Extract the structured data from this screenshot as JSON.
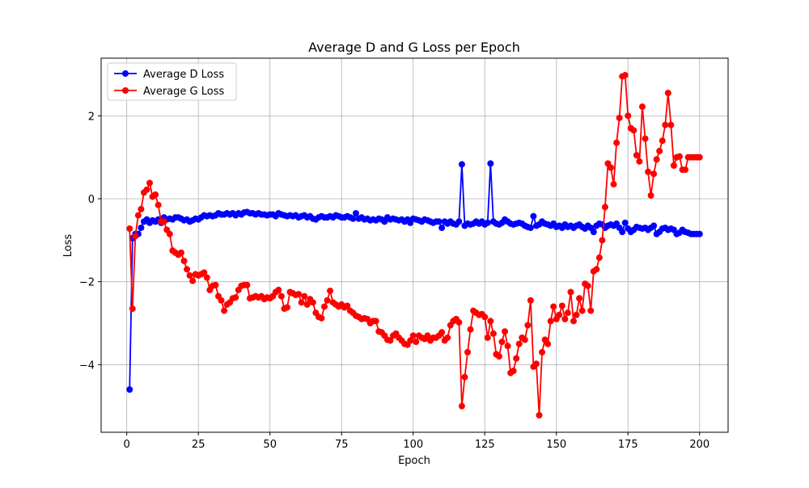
{
  "chart_data": {
    "type": "line",
    "title": "Average D and G Loss per Epoch",
    "xlabel": "Epoch",
    "ylabel": "Loss",
    "x": [
      1,
      2,
      3,
      4,
      5,
      6,
      7,
      8,
      9,
      10,
      11,
      12,
      13,
      14,
      15,
      16,
      17,
      18,
      19,
      20,
      21,
      22,
      23,
      24,
      25,
      26,
      27,
      28,
      29,
      30,
      31,
      32,
      33,
      34,
      35,
      36,
      37,
      38,
      39,
      40,
      41,
      42,
      43,
      44,
      45,
      46,
      47,
      48,
      49,
      50,
      51,
      52,
      53,
      54,
      55,
      56,
      57,
      58,
      59,
      60,
      61,
      62,
      63,
      64,
      65,
      66,
      67,
      68,
      69,
      70,
      71,
      72,
      73,
      74,
      75,
      76,
      77,
      78,
      79,
      80,
      81,
      82,
      83,
      84,
      85,
      86,
      87,
      88,
      89,
      90,
      91,
      92,
      93,
      94,
      95,
      96,
      97,
      98,
      99,
      100,
      101,
      102,
      103,
      104,
      105,
      106,
      107,
      108,
      109,
      110,
      111,
      112,
      113,
      114,
      115,
      116,
      117,
      118,
      119,
      120,
      121,
      122,
      123,
      124,
      125,
      126,
      127,
      128,
      129,
      130,
      131,
      132,
      133,
      134,
      135,
      136,
      137,
      138,
      139,
      140,
      141,
      142,
      143,
      144,
      145,
      146,
      147,
      148,
      149,
      150,
      151,
      152,
      153,
      154,
      155,
      156,
      157,
      158,
      159,
      160,
      161,
      162,
      163,
      164,
      165,
      166,
      167,
      168,
      169,
      170,
      171,
      172,
      173,
      174,
      175,
      176,
      177,
      178,
      179,
      180,
      181,
      182,
      183,
      184,
      185,
      186,
      187,
      188,
      189,
      190,
      191,
      192,
      193,
      194,
      195,
      196,
      197,
      198,
      199,
      200
    ],
    "series": [
      {
        "name": "Average D Loss",
        "color": "#0000ff",
        "values": [
          -4.6,
          -0.95,
          -0.85,
          -0.85,
          -0.7,
          -0.55,
          -0.5,
          -0.58,
          -0.52,
          -0.55,
          -0.5,
          -0.58,
          -0.45,
          -0.5,
          -0.48,
          -0.5,
          -0.45,
          -0.45,
          -0.48,
          -0.52,
          -0.5,
          -0.55,
          -0.52,
          -0.48,
          -0.5,
          -0.45,
          -0.4,
          -0.42,
          -0.4,
          -0.42,
          -0.4,
          -0.35,
          -0.38,
          -0.38,
          -0.35,
          -0.38,
          -0.35,
          -0.4,
          -0.35,
          -0.38,
          -0.33,
          -0.32,
          -0.35,
          -0.35,
          -0.38,
          -0.35,
          -0.38,
          -0.38,
          -0.4,
          -0.38,
          -0.38,
          -0.42,
          -0.35,
          -0.38,
          -0.4,
          -0.42,
          -0.4,
          -0.42,
          -0.4,
          -0.45,
          -0.42,
          -0.4,
          -0.45,
          -0.42,
          -0.48,
          -0.5,
          -0.45,
          -0.42,
          -0.45,
          -0.45,
          -0.42,
          -0.45,
          -0.4,
          -0.42,
          -0.45,
          -0.45,
          -0.42,
          -0.45,
          -0.48,
          -0.35,
          -0.48,
          -0.45,
          -0.5,
          -0.48,
          -0.52,
          -0.5,
          -0.52,
          -0.48,
          -0.5,
          -0.55,
          -0.45,
          -0.5,
          -0.48,
          -0.5,
          -0.52,
          -0.5,
          -0.55,
          -0.5,
          -0.58,
          -0.48,
          -0.5,
          -0.52,
          -0.55,
          -0.5,
          -0.52,
          -0.55,
          -0.58,
          -0.55,
          -0.55,
          -0.7,
          -0.55,
          -0.6,
          -0.55,
          -0.6,
          -0.62,
          -0.55,
          0.83,
          -0.65,
          -0.6,
          -0.62,
          -0.6,
          -0.55,
          -0.6,
          -0.55,
          -0.62,
          -0.58,
          0.85,
          -0.55,
          -0.6,
          -0.62,
          -0.58,
          -0.5,
          -0.55,
          -0.6,
          -0.62,
          -0.6,
          -0.58,
          -0.6,
          -0.65,
          -0.68,
          -0.7,
          -0.42,
          -0.65,
          -0.62,
          -0.55,
          -0.6,
          -0.62,
          -0.65,
          -0.6,
          -0.68,
          -0.65,
          -0.7,
          -0.62,
          -0.68,
          -0.65,
          -0.7,
          -0.65,
          -0.62,
          -0.68,
          -0.72,
          -0.65,
          -0.7,
          -0.8,
          -0.65,
          -0.6,
          -0.62,
          -0.7,
          -0.65,
          -0.62,
          -0.65,
          -0.6,
          -0.7,
          -0.8,
          -0.58,
          -0.72,
          -0.8,
          -0.75,
          -0.68,
          -0.7,
          -0.72,
          -0.7,
          -0.75,
          -0.7,
          -0.65,
          -0.85,
          -0.8,
          -0.72,
          -0.7,
          -0.75,
          -0.72,
          -0.75,
          -0.85,
          -0.82,
          -0.75,
          -0.8,
          -0.82,
          -0.85,
          -0.85,
          -0.85,
          -0.85
        ]
      },
      {
        "name": "Average G Loss",
        "color": "#ff0000",
        "values": [
          -0.72,
          -2.65,
          -0.9,
          -0.4,
          -0.25,
          0.15,
          0.22,
          0.38,
          0.05,
          0.1,
          -0.15,
          -0.55,
          -0.55,
          -0.75,
          -0.85,
          -1.25,
          -1.3,
          -1.35,
          -1.3,
          -1.5,
          -1.7,
          -1.85,
          -1.98,
          -1.82,
          -1.85,
          -1.82,
          -1.78,
          -1.9,
          -2.2,
          -2.1,
          -2.08,
          -2.35,
          -2.45,
          -2.7,
          -2.55,
          -2.5,
          -2.4,
          -2.38,
          -2.2,
          -2.1,
          -2.08,
          -2.08,
          -2.4,
          -2.38,
          -2.35,
          -2.38,
          -2.35,
          -2.42,
          -2.38,
          -2.4,
          -2.35,
          -2.25,
          -2.2,
          -2.35,
          -2.65,
          -2.62,
          -2.25,
          -2.28,
          -2.32,
          -2.3,
          -2.5,
          -2.35,
          -2.55,
          -2.42,
          -2.5,
          -2.75,
          -2.85,
          -2.88,
          -2.6,
          -2.45,
          -2.22,
          -2.5,
          -2.55,
          -2.6,
          -2.55,
          -2.62,
          -2.58,
          -2.7,
          -2.75,
          -2.82,
          -2.85,
          -2.9,
          -2.88,
          -2.9,
          -3.0,
          -2.95,
          -2.95,
          -3.2,
          -3.22,
          -3.3,
          -3.4,
          -3.42,
          -3.3,
          -3.25,
          -3.35,
          -3.42,
          -3.5,
          -3.52,
          -3.42,
          -3.3,
          -3.45,
          -3.3,
          -3.35,
          -3.38,
          -3.3,
          -3.42,
          -3.35,
          -3.35,
          -3.3,
          -3.22,
          -3.42,
          -3.35,
          -3.05,
          -2.95,
          -2.9,
          -2.98,
          -5.0,
          -4.3,
          -3.7,
          -3.15,
          -2.7,
          -2.75,
          -2.8,
          -2.78,
          -2.85,
          -3.35,
          -2.95,
          -3.25,
          -3.75,
          -3.8,
          -3.45,
          -3.2,
          -3.55,
          -4.2,
          -4.15,
          -3.85,
          -3.5,
          -3.35,
          -3.4,
          -3.05,
          -2.45,
          -4.05,
          -3.98,
          -5.22,
          -3.7,
          -3.4,
          -3.5,
          -2.95,
          -2.6,
          -2.9,
          -2.8,
          -2.58,
          -2.9,
          -2.75,
          -2.25,
          -2.95,
          -2.8,
          -2.4,
          -2.7,
          -2.05,
          -2.1,
          -2.7,
          -1.75,
          -1.7,
          -1.42,
          -1.0,
          -0.2,
          0.85,
          0.75,
          0.35,
          1.35,
          1.95,
          2.95,
          2.98,
          2.0,
          1.7,
          1.65,
          1.05,
          0.9,
          2.22,
          1.45,
          0.65,
          0.08,
          0.6,
          0.95,
          1.15,
          1.4,
          1.78,
          2.55,
          1.78,
          0.8,
          1.0,
          1.02,
          0.7,
          0.7,
          1.0,
          1.0,
          1.0,
          1.0,
          1.0
        ]
      }
    ],
    "xlim": [
      -8.95,
      209.95
    ],
    "xticks": [
      0,
      25,
      50,
      75,
      100,
      125,
      150,
      175,
      200
    ],
    "ylim": [
      -5.63,
      3.39
    ],
    "yticks": [
      {
        "value": -4,
        "label": "−4"
      },
      {
        "value": -2,
        "label": "−2"
      },
      0,
      2
    ],
    "grid": true,
    "legend": "upper left"
  }
}
